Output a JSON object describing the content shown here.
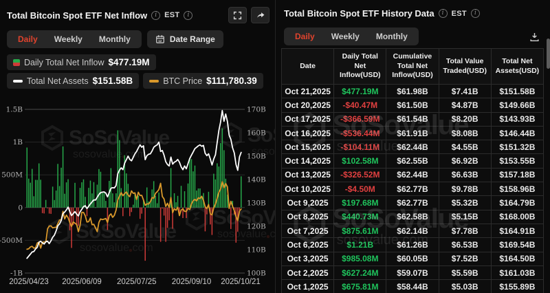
{
  "watermark": {
    "brand": "SoSoValue",
    "domain_left": "sosovalue",
    "domain_right": "com"
  },
  "colors": {
    "accent_red": "#e0432d",
    "green": "#1fc35c",
    "red": "#e14040",
    "bar_green": "#27a94a",
    "bar_red": "#cf3b38",
    "gold_line": "#d9982b",
    "white_line": "#ffffff",
    "grid": "#272727",
    "axis_text": "#b3b3b3"
  },
  "left_panel": {
    "title": "Total Bitcoin Spot ETF Net Inflow",
    "est_label": "EST",
    "tabs": {
      "daily": "Daily",
      "weekly": "Weekly",
      "monthly": "Monthly"
    },
    "date_range_label": "Date Range",
    "legend": {
      "inflow_label": "Daily Total Net Inflow",
      "inflow_value": "$477.19M",
      "assets_label": "Total Net Assets",
      "assets_value": "$151.58B",
      "btc_label": "BTC Price",
      "btc_value": "$111,780.39"
    }
  },
  "right_panel": {
    "title": "Total Bitcoin Spot ETF History Data",
    "est_label": "EST",
    "tabs": {
      "daily": "Daily",
      "weekly": "Weekly",
      "monthly": "Monthly"
    },
    "table": {
      "headers": [
        "Date",
        "Daily Total Net Inflow(USD)",
        "Cumulative Total Net Inflow(USD)",
        "Total Value Traded(USD)",
        "Total Net Assets(USD)"
      ],
      "rows": [
        {
          "date": "Oct 21,2025",
          "inflow": "$477.19M",
          "dir": "pos",
          "cum": "$61.98B",
          "traded": "$7.41B",
          "assets": "$151.58B"
        },
        {
          "date": "Oct 20,2025",
          "inflow": "-$40.47M",
          "dir": "neg",
          "cum": "$61.50B",
          "traded": "$4.87B",
          "assets": "$149.66B"
        },
        {
          "date": "Oct 17,2025",
          "inflow": "-$366.59M",
          "dir": "neg",
          "cum": "$61.54B",
          "traded": "$8.20B",
          "assets": "$143.93B"
        },
        {
          "date": "Oct 16,2025",
          "inflow": "-$536.44M",
          "dir": "neg",
          "cum": "$61.91B",
          "traded": "$8.08B",
          "assets": "$146.44B"
        },
        {
          "date": "Oct 15,2025",
          "inflow": "-$104.11M",
          "dir": "neg",
          "cum": "$62.44B",
          "traded": "$4.55B",
          "assets": "$151.32B"
        },
        {
          "date": "Oct 14,2025",
          "inflow": "$102.58M",
          "dir": "pos",
          "cum": "$62.55B",
          "traded": "$6.92B",
          "assets": "$153.55B"
        },
        {
          "date": "Oct 13,2025",
          "inflow": "-$326.52M",
          "dir": "neg",
          "cum": "$62.44B",
          "traded": "$6.63B",
          "assets": "$157.18B"
        },
        {
          "date": "Oct 10,2025",
          "inflow": "-$4.50M",
          "dir": "neg",
          "cum": "$62.77B",
          "traded": "$9.78B",
          "assets": "$158.96B"
        },
        {
          "date": "Oct 9,2025",
          "inflow": "$197.68M",
          "dir": "pos",
          "cum": "$62.77B",
          "traded": "$5.32B",
          "assets": "$164.79B"
        },
        {
          "date": "Oct 8,2025",
          "inflow": "$440.73M",
          "dir": "pos",
          "cum": "$62.58B",
          "traded": "$5.15B",
          "assets": "$168.00B"
        },
        {
          "date": "Oct 7,2025",
          "inflow": "$875.61M",
          "dir": "pos",
          "cum": "$62.14B",
          "traded": "$7.78B",
          "assets": "$164.91B"
        },
        {
          "date": "Oct 6,2025",
          "inflow": "$1.21B",
          "dir": "pos",
          "cum": "$61.26B",
          "traded": "$6.53B",
          "assets": "$169.54B"
        },
        {
          "date": "Oct 3,2025",
          "inflow": "$985.08M",
          "dir": "pos",
          "cum": "$60.05B",
          "traded": "$7.52B",
          "assets": "$164.50B"
        },
        {
          "date": "Oct 2,2025",
          "inflow": "$627.24M",
          "dir": "pos",
          "cum": "$59.07B",
          "traded": "$5.59B",
          "assets": "$161.03B"
        },
        {
          "date": "Oct 1,2025",
          "inflow": "$675.81M",
          "dir": "pos",
          "cum": "$58.44B",
          "traded": "$5.03B",
          "assets": "$155.89B"
        }
      ]
    }
  },
  "chart_data": {
    "type": "bar+line combo",
    "title": "Total Bitcoin Spot ETF Net Inflow (Daily)",
    "x_tick_labels": [
      "2025/04/23",
      "2025/06/09",
      "2025/07/25",
      "2025/09/10",
      "2025/10/21"
    ],
    "x_tick_indices": [
      0,
      32,
      64,
      96,
      125
    ],
    "left_axis": {
      "tick_labels": [
        "1.5B",
        "1B",
        "500M",
        "0",
        "-500M",
        "-1B"
      ],
      "tick_values_musd": [
        1500,
        1000,
        500,
        0,
        -500,
        -1000
      ],
      "range_musd": [
        -1000,
        1500
      ]
    },
    "right_axis": {
      "tick_labels": [
        "170B",
        "160B",
        "150B",
        "140B",
        "130B",
        "120B",
        "110B",
        "100B"
      ],
      "tick_values_busd": [
        170,
        160,
        150,
        140,
        130,
        120,
        110,
        100
      ],
      "range_busd": [
        100,
        170
      ]
    },
    "btc_hidden_axis_range_kusd": [
      83,
      156.5
    ],
    "grid": true,
    "legend_position": "top",
    "series": [
      {
        "name": "Daily Total Net Inflow",
        "type": "bar",
        "unit": "USD millions",
        "values": [
          917,
          442,
          380,
          591,
          173,
          423,
          422,
          675,
          425,
          -85,
          -90,
          117,
          -11,
          -92,
          -96,
          320,
          115,
          260,
          667,
          329,
          609,
          934,
          211,
          385,
          433,
          -347,
          -616,
          -268,
          378,
          -278,
          -278,
          301,
          386,
          431,
          164,
          -131,
          301,
          412,
          216,
          389,
          6,
          350,
          588,
          547,
          226,
          228,
          102,
          -342,
          408,
          602,
          217,
          80,
          218,
          1180,
          1030,
          297,
          -131,
          800,
          522,
          363,
          -131,
          -68,
          44,
          227,
          131,
          180,
          -172,
          -93,
          115,
          -812,
          308,
          92,
          91,
          277,
          404,
          178,
          66,
          230,
          -523,
          -15,
          -122,
          -523,
          -311,
          -194,
          603,
          -323,
          219,
          81,
          179,
          -126,
          332,
          -160,
          250,
          -160,
          368,
          757,
          741,
          553,
          642,
          260,
          292,
          292,
          163,
          222,
          -363,
          -103,
          241,
          -258,
          -418,
          517,
          430,
          676,
          627,
          985,
          1210,
          876,
          441,
          198,
          -4.5,
          -327,
          103,
          -104,
          -536,
          -367,
          -40,
          477
        ]
      },
      {
        "name": "Total Net Assets",
        "type": "line",
        "axis": "right",
        "unit": "USD billions",
        "values": [
          106.3,
          107.2,
          108.1,
          109,
          109.2,
          110.3,
          111,
          113.2,
          113.6,
          112.9,
          112.4,
          113.4,
          113.6,
          112.6,
          113.8,
          115.3,
          116.2,
          118,
          120.2,
          121,
          122.5,
          125.4,
          126.1,
          127,
          128.2,
          126.3,
          124.6,
          125.4,
          126.3,
          125.2,
          124.4,
          126.2,
          127.3,
          128.4,
          128.8,
          127.6,
          128.6,
          129.6,
          130.4,
          131.3,
          131.2,
          132.4,
          133.6,
          134.4,
          134.6,
          134.7,
          134.2,
          132.6,
          134.4,
          136.3,
          136.5,
          136.4,
          137.4,
          142.5,
          144,
          145,
          144.2,
          147,
          148.5,
          150,
          148.6,
          148,
          149.5,
          151,
          152,
          153.5,
          154.8,
          153.8,
          154.4,
          148.5,
          150.2,
          150.8,
          151,
          152.2,
          153.8,
          154.4,
          154.8,
          156,
          152,
          152.4,
          150.4,
          147.6,
          146.4,
          145.8,
          149.6,
          146.6,
          147.4,
          147.8,
          148.6,
          147.4,
          145.4,
          144.2,
          145.8,
          144.6,
          146.8,
          149,
          150.4,
          151.8,
          153.2,
          153.8,
          154.4,
          154.8,
          154.2,
          154.6,
          151.2,
          150.2,
          151,
          148.8,
          146.2,
          148.8,
          150.6,
          155.89,
          161.03,
          164.5,
          169.54,
          164.91,
          168,
          164.79,
          158.96,
          157.18,
          153.55,
          151.32,
          146.44,
          143.93,
          149.66,
          151.58
        ]
      },
      {
        "name": "BTC Price",
        "type": "line",
        "axis": "btc",
        "unit": "USD thousands",
        "values": [
          93.7,
          93.9,
          94.7,
          95,
          94.2,
          94.3,
          96.5,
          96.9,
          94.2,
          96.8,
          97,
          96.9,
          102.9,
          104.1,
          104.2,
          103.3,
          103.5,
          103.5,
          105.2,
          106.8,
          106.9,
          110.7,
          107.3,
          109,
          107.8,
          105.7,
          103.9,
          105.9,
          105.4,
          104.8,
          101.6,
          104.4,
          110.3,
          110.2,
          108.7,
          105.9,
          106.1,
          107.8,
          104.7,
          104.9,
          103.3,
          101.6,
          105.8,
          107.3,
          107,
          107.2,
          107.5,
          105.7,
          108.8,
          109.6,
          108,
          108.9,
          111.2,
          115.9,
          117.5,
          119.1,
          117.7,
          118.7,
          119.4,
          118,
          117.3,
          119.9,
          118.8,
          119,
          116,
          119.3,
          117.8,
          117.9,
          115.8,
          113.4,
          114.1,
          114,
          115,
          116.9,
          116.6,
          118.8,
          119.5,
          120.5,
          123.3,
          117.4,
          116.3,
          112.9,
          114.3,
          112.5,
          116.9,
          110.1,
          111.9,
          111.2,
          112.6,
          108.8,
          111.3,
          111.8,
          110.7,
          110.7,
          112.1,
          111.5,
          114.1,
          115.5,
          116.1,
          115.4,
          116.8,
          116.4,
          117.5,
          115.7,
          112.8,
          111.9,
          113.8,
          109.6,
          109.1,
          112.3,
          114,
          116.6,
          119.3,
          120.7,
          124,
          121.3,
          123.2,
          121.7,
          112,
          115.2,
          113,
          111,
          108.4,
          106.5,
          110.8,
          111.78
        ]
      }
    ]
  }
}
